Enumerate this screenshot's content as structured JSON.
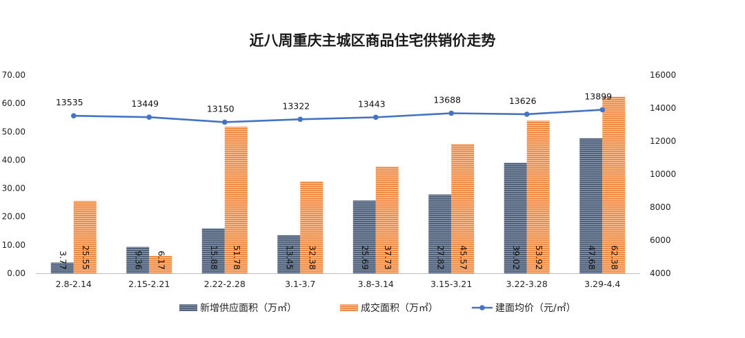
{
  "chart_data": {
    "type": "bar",
    "title": "近八周重庆主城区商品住宅供销价走势",
    "categories": [
      "2.8-2.14",
      "2.15-2.21",
      "2.22-2.28",
      "3.1-3.7",
      "3.8-3.14",
      "3.15-3.21",
      "3.22-3.28",
      "3.29-4.4"
    ],
    "series": [
      {
        "name": "新增供应面积（万㎡）",
        "type": "bar",
        "axis": "left",
        "color": "#44546a",
        "values": [
          3.77,
          9.36,
          15.88,
          13.45,
          25.69,
          27.82,
          39.02,
          47.68
        ],
        "labels": [
          "3.77",
          "9.36",
          "15.88",
          "13.45",
          "25.69",
          "27.82",
          "39.02",
          "47.68"
        ]
      },
      {
        "name": "成交面积（万㎡）",
        "type": "bar",
        "axis": "left",
        "color": "#ed7d31",
        "values": [
          25.55,
          6.17,
          51.78,
          32.38,
          37.73,
          45.57,
          53.92,
          62.38
        ],
        "labels": [
          "25.55",
          "6.17",
          "51.78",
          "32.38",
          "37.73",
          "45.57",
          "53.92",
          "62.38"
        ]
      },
      {
        "name": "建面均价（元/㎡）",
        "type": "line",
        "axis": "right",
        "color": "#4472c4",
        "values": [
          13535,
          13449,
          13150,
          13322,
          13443,
          13688,
          13626,
          13899
        ],
        "labels": [
          "13535",
          "13449",
          "13150",
          "13322",
          "13443",
          "13688",
          "13626",
          "13899"
        ]
      }
    ],
    "y_left": {
      "ylim": [
        0,
        70
      ],
      "ticks": [
        "0.00",
        "10.00",
        "20.00",
        "30.00",
        "40.00",
        "50.00",
        "60.00",
        "70.00"
      ]
    },
    "y_right": {
      "ylim": [
        4000,
        16000
      ],
      "ticks": [
        "4000",
        "6000",
        "8000",
        "10000",
        "12000",
        "14000",
        "16000"
      ]
    },
    "grid": false,
    "legend_position": "bottom"
  }
}
